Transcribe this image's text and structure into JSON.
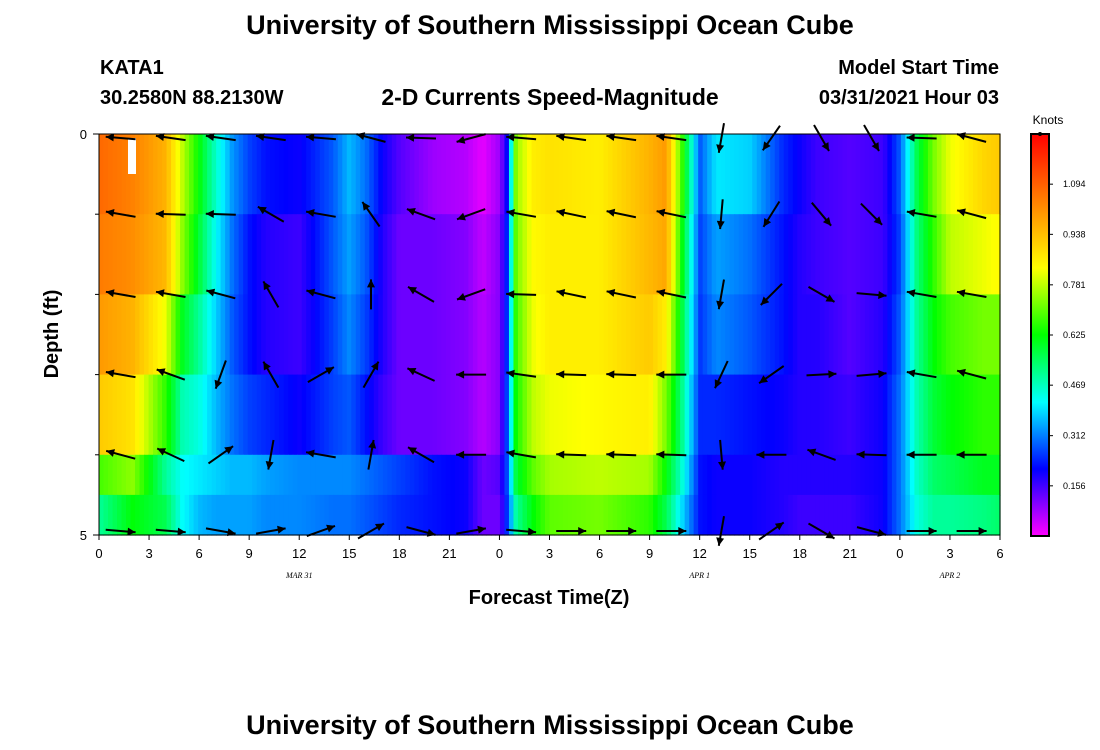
{
  "header": {
    "title_top": "University of Southern Mississippi Ocean Cube",
    "title_bottom": "University of Southern Mississippi Ocean Cube",
    "station_id": "KATA1",
    "station_coords": "30.2580N  88.2130W",
    "model_start_label": "Model Start Time",
    "model_start_value": "03/31/2021 Hour 03"
  },
  "chart_data": {
    "type": "heatmap",
    "title": "2-D Currents Speed-Magnitude",
    "xlabel": "Forecast Time(Z)",
    "ylabel": "Depth (ft)",
    "x_range_hours": [
      0,
      54
    ],
    "y_range_ft": [
      0,
      5
    ],
    "y_tick_labels": [
      "0",
      "5"
    ],
    "y_minor_ticks": [
      1,
      2,
      3,
      4
    ],
    "x_ticks": [
      0,
      3,
      6,
      9,
      12,
      15,
      18,
      21,
      24,
      27,
      30,
      33,
      36,
      39,
      42,
      45,
      48,
      51,
      54
    ],
    "x_tick_labels": [
      "0",
      "3",
      "6",
      "9",
      "12",
      "15",
      "18",
      "21",
      "0",
      "3",
      "6",
      "9",
      "12",
      "15",
      "18",
      "21",
      "0",
      "3",
      "6"
    ],
    "date_labels": [
      {
        "hour": 12,
        "label": "MAR 31"
      },
      {
        "hour": 36,
        "label": "APR 1"
      },
      {
        "hour": 51,
        "label": "APR 2"
      }
    ],
    "colorbar": {
      "unit": "Knots",
      "min": 0.0,
      "max": 1.25,
      "ticks": [
        1.094,
        0.938,
        0.781,
        0.625,
        0.469,
        0.312,
        0.156
      ],
      "tick_labels": [
        "1.094",
        "0.938",
        "0.781",
        "0.625",
        "0.469",
        "0.312",
        "0.156"
      ],
      "colors": [
        "#ff00ff",
        "#0000ff",
        "#00ffff",
        "#00ff00",
        "#ffff00",
        "#ff8000",
        "#ff0000"
      ]
    },
    "depth_layers_ft": [
      0.25,
      1.25,
      2.25,
      3.25,
      4.25,
      4.75
    ],
    "speed_keyframes_hours": [
      0,
      2,
      4,
      5,
      6,
      7,
      8,
      9,
      10,
      12,
      14,
      15,
      16,
      17,
      18,
      20,
      22,
      23,
      24,
      24.5,
      25,
      26,
      27,
      30,
      33,
      34,
      35,
      36,
      37,
      39,
      41,
      42,
      43,
      45,
      47,
      48,
      49,
      50,
      51,
      53,
      54
    ],
    "speed_rows_knots": [
      [
        1.08,
        1.04,
        0.96,
        0.78,
        0.62,
        0.46,
        0.33,
        0.26,
        0.22,
        0.2,
        0.28,
        0.36,
        0.3,
        0.2,
        0.14,
        0.08,
        0.06,
        0.02,
        0.08,
        0.22,
        0.75,
        0.86,
        0.88,
        0.86,
        0.96,
        1.0,
        0.65,
        0.28,
        0.4,
        0.38,
        0.24,
        0.2,
        0.16,
        0.14,
        0.16,
        0.28,
        0.56,
        0.72,
        0.82,
        0.9,
        0.92
      ],
      [
        1.05,
        1.02,
        0.95,
        0.74,
        0.58,
        0.42,
        0.3,
        0.22,
        0.18,
        0.16,
        0.28,
        0.34,
        0.28,
        0.18,
        0.12,
        0.12,
        0.1,
        0.05,
        0.1,
        0.25,
        0.72,
        0.84,
        0.86,
        0.86,
        0.95,
        0.98,
        0.6,
        0.26,
        0.34,
        0.3,
        0.22,
        0.18,
        0.16,
        0.14,
        0.16,
        0.26,
        0.52,
        0.66,
        0.78,
        0.82,
        0.84
      ],
      [
        1.0,
        0.96,
        0.82,
        0.6,
        0.5,
        0.38,
        0.28,
        0.22,
        0.18,
        0.16,
        0.26,
        0.32,
        0.26,
        0.18,
        0.12,
        0.12,
        0.1,
        0.06,
        0.1,
        0.26,
        0.68,
        0.82,
        0.86,
        0.86,
        0.92,
        0.86,
        0.56,
        0.25,
        0.32,
        0.28,
        0.22,
        0.18,
        0.18,
        0.14,
        0.18,
        0.28,
        0.5,
        0.62,
        0.68,
        0.72,
        0.72
      ],
      [
        0.92,
        0.88,
        0.66,
        0.48,
        0.44,
        0.36,
        0.3,
        0.26,
        0.24,
        0.2,
        0.26,
        0.28,
        0.22,
        0.16,
        0.12,
        0.12,
        0.1,
        0.06,
        0.1,
        0.28,
        0.64,
        0.78,
        0.82,
        0.84,
        0.86,
        0.72,
        0.5,
        0.24,
        0.24,
        0.22,
        0.2,
        0.18,
        0.18,
        0.16,
        0.2,
        0.3,
        0.48,
        0.58,
        0.62,
        0.66,
        0.66
      ],
      [
        0.68,
        0.74,
        0.5,
        0.42,
        0.4,
        0.38,
        0.36,
        0.36,
        0.34,
        0.32,
        0.32,
        0.32,
        0.3,
        0.28,
        0.26,
        0.22,
        0.2,
        0.12,
        0.14,
        0.28,
        0.58,
        0.7,
        0.76,
        0.78,
        0.76,
        0.62,
        0.44,
        0.22,
        0.2,
        0.2,
        0.18,
        0.18,
        0.18,
        0.18,
        0.2,
        0.3,
        0.46,
        0.54,
        0.56,
        0.6,
        0.6
      ],
      [
        0.5,
        0.62,
        0.56,
        0.42,
        0.36,
        0.34,
        0.34,
        0.34,
        0.32,
        0.32,
        0.3,
        0.3,
        0.28,
        0.26,
        0.24,
        0.22,
        0.2,
        0.12,
        0.12,
        0.26,
        0.5,
        0.62,
        0.7,
        0.72,
        0.66,
        0.56,
        0.38,
        0.22,
        0.2,
        0.2,
        0.18,
        0.16,
        0.16,
        0.16,
        0.2,
        0.3,
        0.44,
        0.5,
        0.5,
        0.52,
        0.54
      ]
    ],
    "vector_hours": [
      1.3,
      4.3,
      7.3,
      10.3,
      13.3,
      16.3,
      19.3,
      22.3,
      25.3,
      28.3,
      31.3,
      34.3,
      37.3,
      40.3,
      43.3,
      46.3,
      49.3,
      52.3
    ],
    "vector_rows_deg": [
      [
        175,
        172,
        172,
        172,
        175,
        165,
        178,
        195,
        175,
        172,
        172,
        172,
        260,
        235,
        300,
        300,
        178,
        165
      ],
      [
        170,
        178,
        178,
        150,
        170,
        125,
        160,
        200,
        170,
        168,
        168,
        168,
        265,
        238,
        310,
        315,
        170,
        165
      ],
      [
        170,
        170,
        165,
        120,
        165,
        90,
        150,
        200,
        178,
        168,
        168,
        168,
        260,
        225,
        330,
        355,
        170,
        170
      ],
      [
        170,
        160,
        250,
        120,
        30,
        60,
        155,
        180,
        172,
        178,
        178,
        180,
        245,
        215,
        3,
        5,
        170,
        165
      ],
      [
        165,
        155,
        35,
        260,
        170,
        80,
        150,
        180,
        170,
        178,
        178,
        178,
        275,
        180,
        160,
        178,
        180,
        180
      ],
      [
        355,
        355,
        350,
        10,
        20,
        30,
        345,
        10,
        355,
        0,
        0,
        0,
        260,
        35,
        330,
        345,
        0,
        0
      ]
    ]
  }
}
